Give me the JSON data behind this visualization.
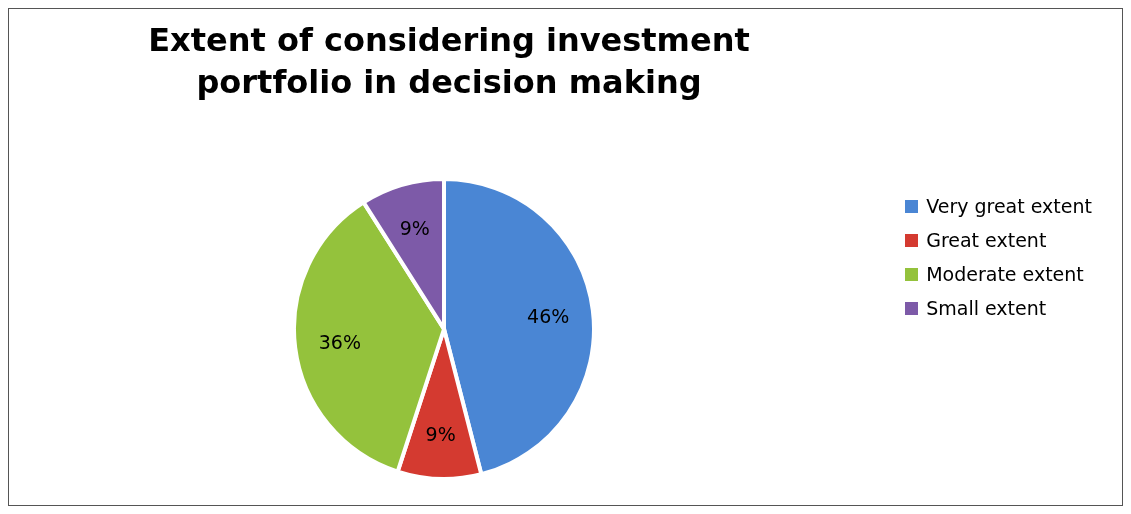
{
  "chart_data": {
    "type": "pie",
    "title": "Extent of considering investment portfolio in decision making",
    "categories": [
      "Very great extent",
      "Great extent",
      "Moderate extent",
      "Small extent"
    ],
    "values": [
      46,
      9,
      36,
      9
    ],
    "colors": [
      "#4a86d4",
      "#d43a30",
      "#94c23c",
      "#7d5aa8"
    ],
    "value_labels": [
      "46%",
      "9%",
      "36%",
      "9%"
    ],
    "legend": "right"
  }
}
